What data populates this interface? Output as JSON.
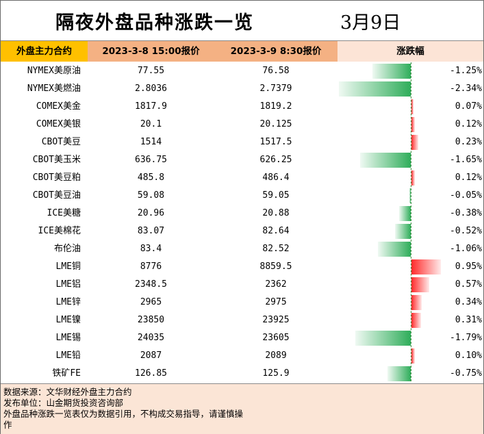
{
  "title": "隔夜外盘品种涨跌一览",
  "date": "3月9日",
  "headers": [
    "外盘主力合约",
    "2023-3-8 15:00报价",
    "2023-3-9 8:30报价",
    "涨跌幅"
  ],
  "rows": [
    {
      "name": "NYMEX美原油",
      "prev": "77.55",
      "curr": "76.58",
      "change": "-1.25%",
      "pct": -1.25
    },
    {
      "name": "NYMEX美燃油",
      "prev": "2.8036",
      "curr": "2.7379",
      "change": "-2.34%",
      "pct": -2.34
    },
    {
      "name": "COMEX美金",
      "prev": "1817.9",
      "curr": "1819.2",
      "change": "0.07%",
      "pct": 0.07
    },
    {
      "name": "COMEX美银",
      "prev": "20.1",
      "curr": "20.125",
      "change": "0.12%",
      "pct": 0.12
    },
    {
      "name": "CBOT美豆",
      "prev": "1514",
      "curr": "1517.5",
      "change": "0.23%",
      "pct": 0.23
    },
    {
      "name": "CBOT美玉米",
      "prev": "636.75",
      "curr": "626.25",
      "change": "-1.65%",
      "pct": -1.65
    },
    {
      "name": "CBOT美豆粕",
      "prev": "485.8",
      "curr": "486.4",
      "change": "0.12%",
      "pct": 0.12
    },
    {
      "name": "CBOT美豆油",
      "prev": "59.08",
      "curr": "59.05",
      "change": "-0.05%",
      "pct": -0.05
    },
    {
      "name": "ICE美糖",
      "prev": "20.96",
      "curr": "20.88",
      "change": "-0.38%",
      "pct": -0.38
    },
    {
      "name": "ICE美棉花",
      "prev": "83.07",
      "curr": "82.64",
      "change": "-0.52%",
      "pct": -0.52
    },
    {
      "name": "布伦油",
      "prev": "83.4",
      "curr": "82.52",
      "change": "-1.06%",
      "pct": -1.06
    },
    {
      "name": "LME铜",
      "prev": "8776",
      "curr": "8859.5",
      "change": "0.95%",
      "pct": 0.95
    },
    {
      "name": "LME铝",
      "prev": "2348.5",
      "curr": "2362",
      "change": "0.57%",
      "pct": 0.57
    },
    {
      "name": "LME锌",
      "prev": "2965",
      "curr": "2975",
      "change": "0.34%",
      "pct": 0.34
    },
    {
      "name": "LME镍",
      "prev": "23850",
      "curr": "23925",
      "change": "0.31%",
      "pct": 0.31
    },
    {
      "name": "LME锡",
      "prev": "24035",
      "curr": "23605",
      "change": "-1.79%",
      "pct": -1.79
    },
    {
      "name": "LME铅",
      "prev": "2087",
      "curr": "2089",
      "change": "0.10%",
      "pct": 0.1
    },
    {
      "name": "铁矿FE",
      "prev": "126.85",
      "curr": "125.9",
      "change": "-0.75%",
      "pct": -0.75
    }
  ],
  "footer": [
    "数据来源：文华财经外盘主力合约",
    "发布单位：山金期货投资咨询部",
    "外盘品种涨跌一览表仅为数据引用，不构成交易指导，请谨慎操",
    "作"
  ],
  "colors": {
    "rise": "#ff2a2a",
    "fall": "#2fad5a",
    "header_main": "#f4b183",
    "header_first": "#ffc000",
    "footer_bg": "#fbe5d6"
  }
}
